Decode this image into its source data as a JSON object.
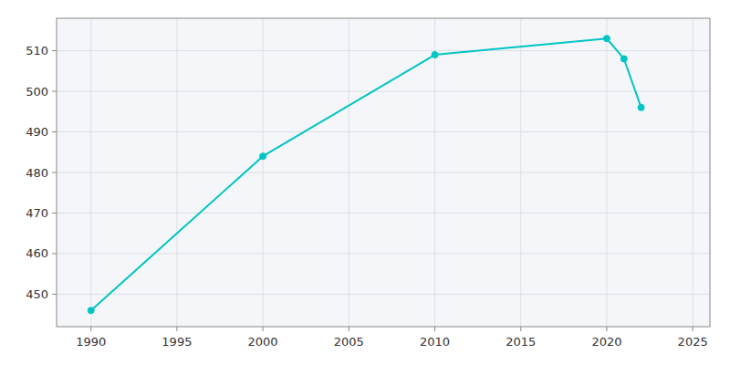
{
  "chart_data": {
    "type": "line",
    "x": [
      1990,
      2000,
      2010,
      2020,
      2021,
      2022
    ],
    "values": [
      446,
      484,
      509,
      513,
      508,
      496
    ],
    "color": "#00C5C5",
    "marker": "circle",
    "xlim": [
      1988,
      2026
    ],
    "ylim": [
      442,
      518
    ],
    "xticks": [
      1990,
      1995,
      2000,
      2005,
      2010,
      2015,
      2020,
      2025
    ],
    "yticks": [
      450,
      460,
      470,
      480,
      490,
      500,
      510
    ],
    "grid": true
  }
}
